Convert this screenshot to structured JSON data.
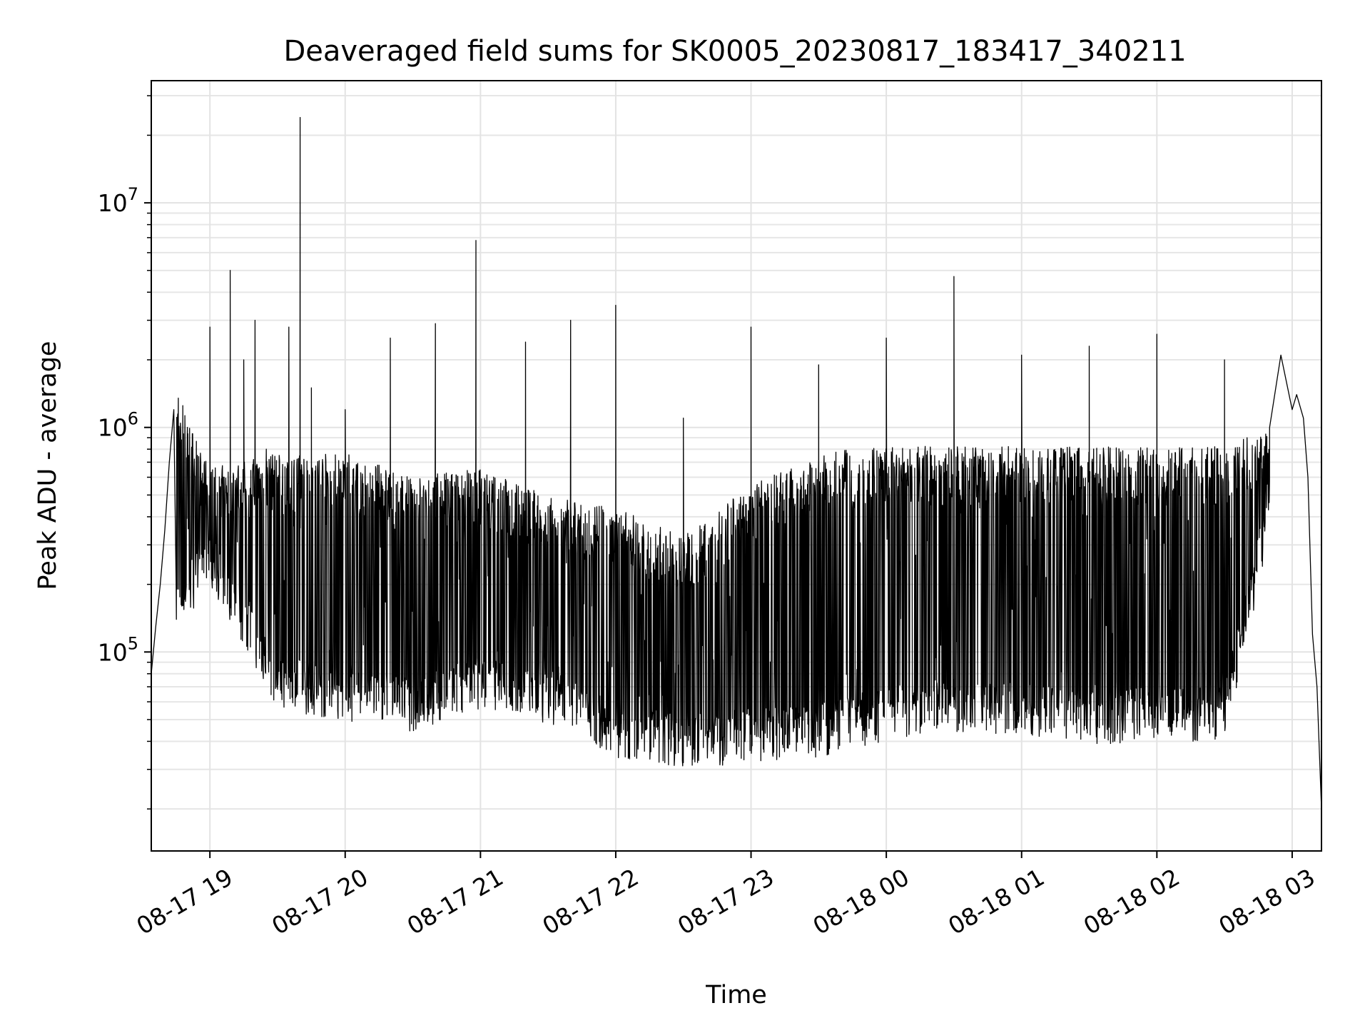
{
  "chart_data": {
    "type": "line",
    "title": "Deaveraged field sums for SK0005_20230817_183417_340211",
    "xlabel": "Time",
    "ylabel": "Peak ADU - average",
    "xscale": "time",
    "yscale": "log",
    "xlim": [
      "2023-08-17 18:34",
      "2023-08-18 03:13"
    ],
    "ylim": [
      13000,
      35000000
    ],
    "grid": true,
    "line_color": "#000000",
    "x_ticks": [
      {
        "value": "2023-08-17 19:00",
        "label": "08-17 19"
      },
      {
        "value": "2023-08-17 20:00",
        "label": "08-17 20"
      },
      {
        "value": "2023-08-17 21:00",
        "label": "08-17 21"
      },
      {
        "value": "2023-08-17 22:00",
        "label": "08-17 22"
      },
      {
        "value": "2023-08-17 23:00",
        "label": "08-17 23"
      },
      {
        "value": "2023-08-18 00:00",
        "label": "08-18 00"
      },
      {
        "value": "2023-08-18 01:00",
        "label": "08-18 01"
      },
      {
        "value": "2023-08-18 02:00",
        "label": "08-18 02"
      },
      {
        "value": "2023-08-18 03:00",
        "label": "08-18 03"
      }
    ],
    "y_ticks": [
      {
        "value": 100000,
        "base": "10",
        "exp": "5"
      },
      {
        "value": 1000000,
        "base": "10",
        "exp": "6"
      },
      {
        "value": 10000000,
        "base": "10",
        "exp": "7"
      }
    ],
    "series": [
      {
        "x": [
          "2023-08-17 18:34",
          "2023-08-17 18:36",
          "2023-08-17 18:38",
          "2023-08-17 18:40",
          "2023-08-17 18:42",
          "2023-08-17 18:44",
          "2023-08-17 18:46",
          "2023-08-17 18:48",
          "2023-08-17 18:50",
          "2023-08-17 18:52",
          "2023-08-17 18:54",
          "2023-08-17 18:56",
          "2023-08-17 18:58",
          "2023-08-17 19:00",
          "2023-08-17 19:05",
          "2023-08-17 19:09",
          "2023-08-17 19:15",
          "2023-08-17 19:20",
          "2023-08-17 19:25",
          "2023-08-17 19:30",
          "2023-08-17 19:35",
          "2023-08-17 19:40",
          "2023-08-17 19:45",
          "2023-08-17 20:00",
          "2023-08-17 20:20",
          "2023-08-17 20:40",
          "2023-08-17 20:58",
          "2023-08-17 21:20",
          "2023-08-17 21:40",
          "2023-08-17 22:00",
          "2023-08-17 22:30",
          "2023-08-17 23:00",
          "2023-08-17 23:30",
          "2023-08-18 00:00",
          "2023-08-18 00:30",
          "2023-08-18 01:00",
          "2023-08-18 01:30",
          "2023-08-18 02:00",
          "2023-08-18 02:30",
          "2023-08-18 02:40",
          "2023-08-18 02:50",
          "2023-08-18 02:55",
          "2023-08-18 03:00",
          "2023-08-18 03:02",
          "2023-08-18 03:05",
          "2023-08-18 03:07",
          "2023-08-18 03:09",
          "2023-08-18 03:11",
          "2023-08-18 03:13"
        ],
        "y": [
          80000,
          130000,
          200000,
          350000,
          700000,
          1200000,
          1350000,
          1250000,
          1000000,
          800000,
          550000,
          450000,
          500000,
          2800000,
          400000,
          5000000,
          2000000,
          3000000,
          800000,
          600000,
          2800000,
          24000000,
          1500000,
          1200000,
          2500000,
          2900000,
          6800000,
          2400000,
          3000000,
          3500000,
          1100000,
          2800000,
          1900000,
          2500000,
          4700000,
          2100000,
          2300000,
          2600000,
          2000000,
          900000,
          1000000,
          2100000,
          1200000,
          1400000,
          1100000,
          600000,
          120000,
          70000,
          20000
        ]
      }
    ],
    "envelope": {
      "x": [
        "2023-08-17 18:45",
        "2023-08-17 19:00",
        "2023-08-17 19:30",
        "2023-08-17 20:00",
        "2023-08-17 20:30",
        "2023-08-17 21:00",
        "2023-08-17 21:30",
        "2023-08-17 22:00",
        "2023-08-17 22:30",
        "2023-08-17 23:00",
        "2023-08-17 23:30",
        "2023-08-18 00:00",
        "2023-08-18 00:30",
        "2023-08-18 01:00",
        "2023-08-18 01:30",
        "2023-08-18 02:00",
        "2023-08-18 02:30",
        "2023-08-18 02:50"
      ],
      "low": [
        150000,
        250000,
        70000,
        60000,
        55000,
        70000,
        60000,
        42000,
        38000,
        40000,
        42000,
        50000,
        55000,
        52000,
        48000,
        50000,
        50000,
        400000
      ],
      "high": [
        1300000,
        600000,
        700000,
        700000,
        550000,
        600000,
        450000,
        400000,
        300000,
        500000,
        700000,
        750000,
        750000,
        750000,
        750000,
        750000,
        750000,
        900000
      ]
    }
  }
}
